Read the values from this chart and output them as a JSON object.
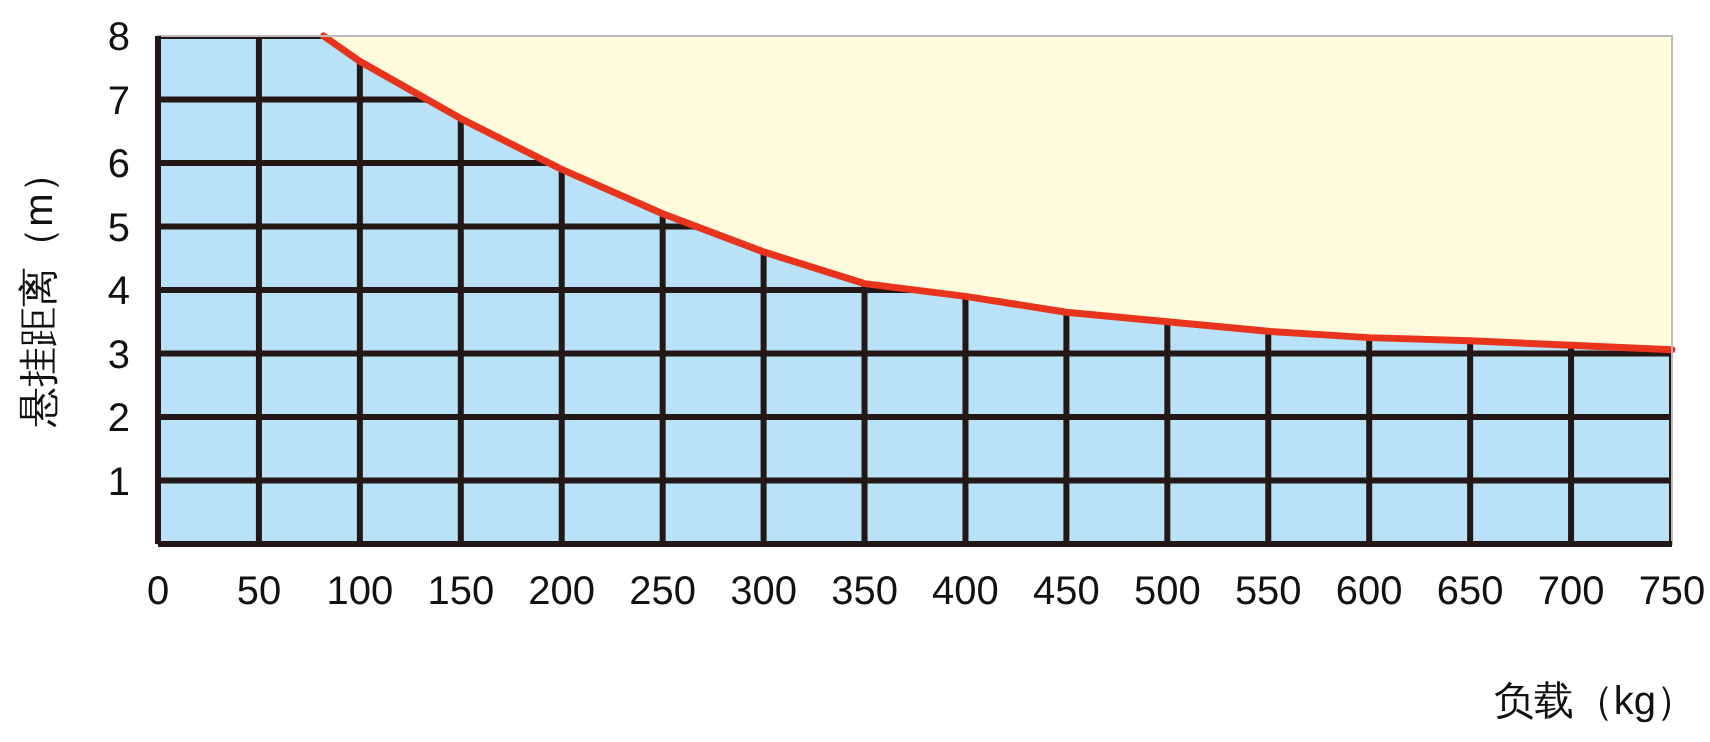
{
  "chart_data": {
    "type": "area",
    "xlabel": "负载（kg）",
    "ylabel": "悬挂距离（m）",
    "series": [
      {
        "color": "#b9e1f7",
        "x": [
          0,
          82,
          100,
          150,
          200,
          250,
          300,
          350,
          400,
          450,
          500,
          550,
          600,
          650,
          700,
          750
        ],
        "values": [
          8,
          8,
          7.6,
          6.7,
          5.9,
          5.2,
          4.6,
          4.1,
          3.9,
          3.65,
          3.5,
          3.35,
          3.25,
          3.2,
          3.13,
          3.06
        ]
      },
      {
        "type": "line",
        "color": "#e8341c",
        "x": [
          82,
          100,
          150,
          200,
          250,
          300,
          350,
          400,
          450,
          500,
          550,
          600,
          650,
          700,
          750
        ],
        "values": [
          8,
          7.6,
          6.7,
          5.9,
          5.2,
          4.6,
          4.1,
          3.9,
          3.65,
          3.5,
          3.35,
          3.25,
          3.2,
          3.13,
          3.06
        ]
      }
    ],
    "xlim": [
      0,
      750
    ],
    "ylim": [
      0,
      8
    ],
    "xticks": [
      0,
      50,
      100,
      150,
      200,
      250,
      300,
      350,
      400,
      450,
      500,
      550,
      600,
      650,
      700,
      750
    ],
    "yticks": [
      1,
      2,
      3,
      4,
      5,
      6,
      7,
      8
    ],
    "grid": true
  }
}
